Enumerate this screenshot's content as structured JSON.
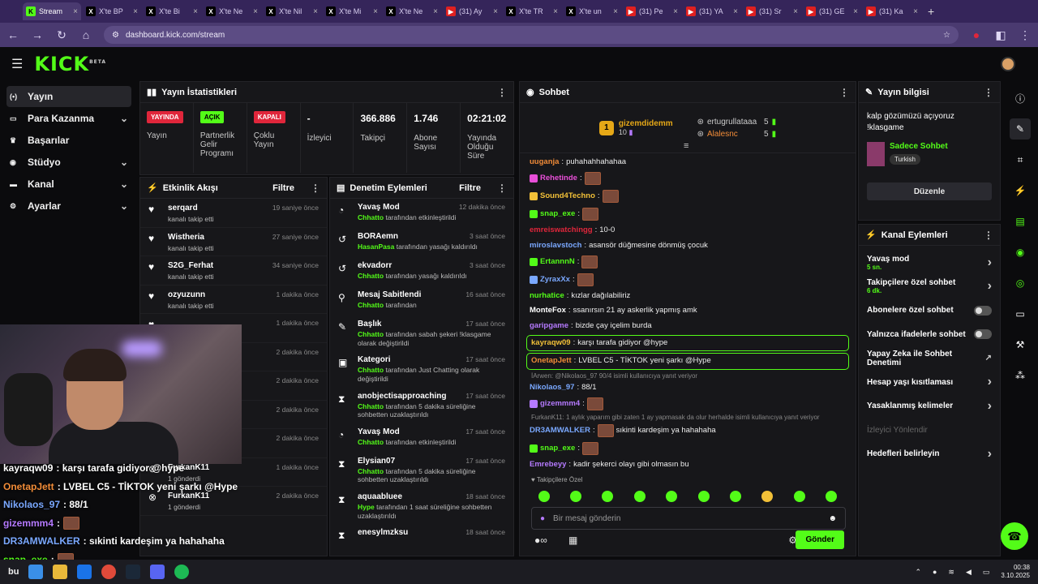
{
  "browser": {
    "tabs": [
      {
        "label": "Stream",
        "fav": "k",
        "active": true
      },
      {
        "label": "X'te BP",
        "fav": "x"
      },
      {
        "label": "X'te Bi",
        "fav": "x"
      },
      {
        "label": "X'te Ne",
        "fav": "x"
      },
      {
        "label": "X'te Nil",
        "fav": "x"
      },
      {
        "label": "X'te Mi",
        "fav": "x"
      },
      {
        "label": "X'te Ne",
        "fav": "x"
      },
      {
        "label": "(31) Ay",
        "fav": "yt"
      },
      {
        "label": "X'te TR",
        "fav": "x"
      },
      {
        "label": "X'te un",
        "fav": "x"
      },
      {
        "label": "(31) Pe",
        "fav": "yt"
      },
      {
        "label": "(31) YA",
        "fav": "yt"
      },
      {
        "label": "(31) Sr",
        "fav": "yt"
      },
      {
        "label": "(31) GE",
        "fav": "yt"
      },
      {
        "label": "(31) Ka",
        "fav": "yt"
      }
    ],
    "url": "dashboard.kick.com/stream"
  },
  "logo": "KICK",
  "logo_sup": "BETA",
  "sidebar": {
    "items": [
      {
        "label": "Yayın",
        "icon": "broadcast-icon",
        "active": true
      },
      {
        "label": "Para Kazanma",
        "icon": "money-icon",
        "chevron": true
      },
      {
        "label": "Başarılar",
        "icon": "trophy-icon"
      },
      {
        "label": "Stüdyo",
        "icon": "studio-icon",
        "chevron": true
      },
      {
        "label": "Kanal",
        "icon": "channel-icon",
        "chevron": true
      },
      {
        "label": "Ayarlar",
        "icon": "gear-icon",
        "chevron": true
      }
    ]
  },
  "stats": {
    "title": "Yayın İstatistikleri",
    "items": [
      {
        "badge": "YAYINDA",
        "badge_color": "#e0263b",
        "label": "Yayın"
      },
      {
        "badge": "AÇIK",
        "badge_color": "#53fc18",
        "label": "Partnerlik Gelir Programı"
      },
      {
        "badge": "KAPALI",
        "badge_color": "#e0263b",
        "label": "Çoklu Yayın"
      },
      {
        "value": "-",
        "label": "İzleyici"
      },
      {
        "value": "366.886",
        "label": "Takipçi"
      },
      {
        "value": "1.746",
        "label": "Abone Sayısı"
      },
      {
        "value": "02:21:02",
        "label": "Yayında Olduğu Süre"
      }
    ]
  },
  "activity": {
    "title": "Etkinlik Akışı",
    "filter": "Filtre",
    "rows": [
      {
        "name": "serqard",
        "sub": "kanalı takip etti",
        "time": "19 saniye önce"
      },
      {
        "name": "Wistheria",
        "sub": "kanalı takip etti",
        "time": "27 saniye önce"
      },
      {
        "name": "S2G_Ferhat",
        "sub": "kanalı takip etti",
        "time": "34 saniye önce"
      },
      {
        "name": "ozyuzunn",
        "sub": "kanalı takip etti",
        "time": "1 dakika önce"
      },
      {
        "name": "",
        "sub": "",
        "time": "1 dakika önce"
      },
      {
        "name": "",
        "sub": "",
        "time": "2 dakika önce"
      },
      {
        "name": "",
        "sub": "",
        "time": "2 dakika önce"
      },
      {
        "name": "",
        "sub": "",
        "time": "2 dakika önce"
      },
      {
        "name": "",
        "sub": "",
        "time": "2 dakika önce"
      },
      {
        "name": "FurkanK11",
        "sub": "1 gönderdi",
        "time": "1 dakika önce"
      },
      {
        "name": "FurkanK11",
        "sub": "1 gönderdi",
        "time": "2 dakika önce"
      }
    ]
  },
  "moderation": {
    "title": "Denetim Eylemleri",
    "filter": "Filtre",
    "rows": [
      {
        "name": "Yavaş Mod",
        "actor": "Chhatto",
        "text": "tarafından etkinleştirildi",
        "time": "12 dakika önce"
      },
      {
        "name": "BORAemn",
        "actor": "HasanPasa",
        "text": "tarafından yasağı kaldırıldı",
        "time": "3 saat önce"
      },
      {
        "name": "ekvadorr",
        "actor": "Chhatto",
        "text": "tarafından yasağı kaldırıldı",
        "time": "3 saat önce"
      },
      {
        "name": "Mesaj Sabitlendi",
        "actor": "Chhatto",
        "text": "tarafından",
        "time": "16 saat önce"
      },
      {
        "name": "Başlık",
        "actor": "Chhatto",
        "text": "tarafından sabah şekeri !klasgame olarak değiştirildi",
        "time": "17 saat önce"
      },
      {
        "name": "Kategori",
        "actor": "Chhatto",
        "text": "tarafından Just Chatting olarak değiştirildi",
        "time": "17 saat önce"
      },
      {
        "name": "anobjectisapproaching",
        "actor": "Chhatto",
        "text": "tarafından 5 dakika süreliğine sohbetten uzaklaştırıldı",
        "time": "17 saat önce"
      },
      {
        "name": "Yavaş Mod",
        "actor": "Chhatto",
        "text": "tarafından etkinleştirildi",
        "time": "17 saat önce"
      },
      {
        "name": "Elysian07",
        "actor": "Chhatto",
        "text": "tarafından 5 dakika süreliğine sohbetten uzaklaştırıldı",
        "time": "17 saat önce"
      },
      {
        "name": "aquaabluee",
        "actor": "Hype",
        "text": "tarafından 1 saat süreliğine sohbetten uzaklaştırıldı",
        "time": "18 saat önce"
      },
      {
        "name": "enesylmzksu",
        "actor": "",
        "text": "",
        "time": "18 saat önce"
      }
    ]
  },
  "chat": {
    "title": "Sohbet",
    "top_gifter": {
      "name": "gizemdidemm",
      "count": "10",
      "rank": "1"
    },
    "gifters": [
      {
        "name": "ertugrullataaa",
        "count": "5"
      },
      {
        "name": "Alalesnc",
        "count": "5"
      }
    ],
    "messages": [
      {
        "user": "uuganja",
        "color": "#f28c38",
        "text": "puhahahhahahaa"
      },
      {
        "user": "Rehetinde",
        "color": "#e84fd8",
        "text": "",
        "emote": true
      },
      {
        "user": "Sound4Techno",
        "color": "#f2c038",
        "text": "",
        "emote": true
      },
      {
        "user": "snap_exe",
        "color": "#53fc18",
        "text": "",
        "emote": true
      },
      {
        "user": "emreiswatchingg",
        "color": "#e0263b",
        "text": "10-0"
      },
      {
        "user": "miroslavstoch",
        "color": "#7aa8ff",
        "text": "asansör düğmesine dönmüş çocuk"
      },
      {
        "user": "ErtannnN",
        "color": "#53fc18",
        "text": "",
        "emote": true
      },
      {
        "user": "ZyraxXx",
        "color": "#7aa8ff",
        "text": "",
        "emote": true
      },
      {
        "user": "nurhatice",
        "color": "#53fc18",
        "text": "kızlar dağılabiliriz"
      },
      {
        "user": "MonteFox",
        "color": "#ffffff",
        "text": "ssanırsın 21 ay askerlik yapmış amk"
      },
      {
        "user": "garipgame",
        "color": "#b57aff",
        "text": "bizde çay içelim burda"
      },
      {
        "user": "kayraqw09",
        "color": "#f2c038",
        "text": "karşı tarafa gidiyor @hype",
        "highlight": true
      },
      {
        "user": "OnetapJett",
        "color": "#f28c38",
        "text": "LVBEL C5 - TİKTOK yeni şarkı @Hype",
        "highlight": true
      }
    ],
    "reply1": "İArwen: @Nikolaos_97 90/4 isimli kullanıcıya yanıt veriyor",
    "messages2": [
      {
        "user": "Nikolaos_97",
        "color": "#7aa8ff",
        "text": "88/1"
      },
      {
        "user": "gizemmm4",
        "color": "#b57aff",
        "text": "",
        "emote": true
      }
    ],
    "reply2": "FurkanK11: 1 aylık yaparım gibi zaten 1 ay yapmasak da olur herhalde isimli kullanıcıya yanıt veriyor",
    "messages3": [
      {
        "user": "DR3AMWALKER",
        "color": "#7aa8ff",
        "text": "sıkinti kardeşim ya hahahaha",
        "emote": true
      },
      {
        "user": "snap_exe",
        "color": "#53fc18",
        "text": "",
        "emote": true
      },
      {
        "user": "Emrebeyy",
        "color": "#b57aff",
        "text": "kadir şekerci olayı gibi olmasın bu"
      }
    ],
    "followers_only": "Takipçilere Özel",
    "input_placeholder": "Bir mesaj gönderin",
    "send": "Gönder"
  },
  "info": {
    "title": "Yayın bilgisi",
    "stream_title": "kalp gözümüzü açıyoruz !klasgame",
    "category": "Sadece Sohbet",
    "tag": "Turkish",
    "edit": "Düzenle"
  },
  "channel_actions": {
    "title": "Kanal Eylemleri",
    "rows": [
      {
        "label": "Yavaş mod",
        "sub": "5 sn.",
        "kind": "chevron"
      },
      {
        "label": "Takipçilere özel sohbet",
        "sub": "6 dk.",
        "kind": "chevron"
      },
      {
        "label": "Abonelere özel sohbet",
        "kind": "toggle"
      },
      {
        "label": "Yalnızca ifadelerle sohbet",
        "kind": "toggle"
      },
      {
        "label": "Yapay Zeka ile Sohbet Denetimi",
        "kind": "external"
      },
      {
        "label": "Hesap yaşı kısıtlaması",
        "kind": "chevron"
      },
      {
        "label": "Yasaklanmış kelimeler",
        "kind": "chevron"
      },
      {
        "label": "İzleyici Yönlendir",
        "kind": "disabled"
      },
      {
        "label": "Hedefleri belirleyin",
        "kind": "chevron"
      }
    ]
  },
  "overlay_chat": [
    {
      "user": "kayraqw09",
      "text": ": karşı tarafa gidiyor @hype",
      "color": "#ffffff"
    },
    {
      "user": "OnetapJett",
      "text": " : LVBEL C5 - TİKTOK yeni şarkı @Hype",
      "color": "#f28c38"
    },
    {
      "user": "Nikolaos_97",
      "text": " : 88/1",
      "color": "#7aa8ff"
    },
    {
      "user": "gizemmm4",
      "text": " :",
      "color": "#b57aff"
    },
    {
      "user": "DR3AMWALKER",
      "text": " : sıkinti kardeşim ya hahahaha",
      "color": "#7aa8ff"
    },
    {
      "user": "snap_exe",
      "text": " :",
      "color": "#53fc18"
    }
  ],
  "taskbar": {
    "search": "bu",
    "time": "00:38",
    "date": "3.10.2025"
  }
}
